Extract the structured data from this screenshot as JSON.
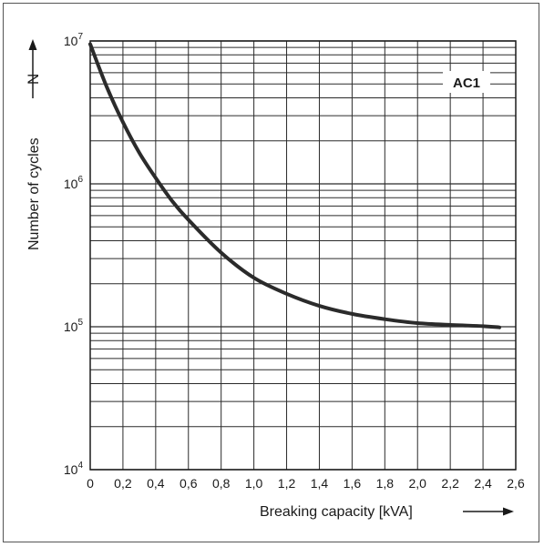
{
  "chart_data": {
    "type": "line",
    "y_scale": "log",
    "grid": true,
    "xlabel": "Breaking capacity [kVA]",
    "ylabel": "Number of cycles",
    "y_symbol": "N",
    "xlim": [
      0,
      2.6
    ],
    "ylim": [
      10000,
      10000000
    ],
    "x_ticks": [
      0,
      0.2,
      0.4,
      0.6,
      0.8,
      1.0,
      1.2,
      1.4,
      1.6,
      1.8,
      2.0,
      2.2,
      2.4,
      2.6
    ],
    "x_tick_labels": [
      "0",
      "0,2",
      "0,4",
      "0,6",
      "0,8",
      "1,0",
      "1,2",
      "1,4",
      "1,6",
      "1,8",
      "2,0",
      "2,2",
      "2,4",
      "2,6"
    ],
    "y_ticks": [
      {
        "value": 10000,
        "base": "10",
        "exp": "4"
      },
      {
        "value": 100000,
        "base": "10",
        "exp": "5"
      },
      {
        "value": 1000000,
        "base": "10",
        "exp": "6"
      },
      {
        "value": 10000000,
        "base": "10",
        "exp": "7"
      }
    ],
    "series": [
      {
        "name": "AC1",
        "x": [
          0.0,
          0.1,
          0.2,
          0.3,
          0.4,
          0.5,
          0.6,
          0.8,
          1.0,
          1.2,
          1.4,
          1.6,
          1.8,
          2.0,
          2.2,
          2.4,
          2.5
        ],
        "y": [
          9500000,
          4800000,
          2700000,
          1650000,
          1100000,
          760000,
          560000,
          330000,
          220000,
          170000,
          140000,
          123000,
          113000,
          106000,
          103000,
          101000,
          99000
        ]
      }
    ]
  }
}
